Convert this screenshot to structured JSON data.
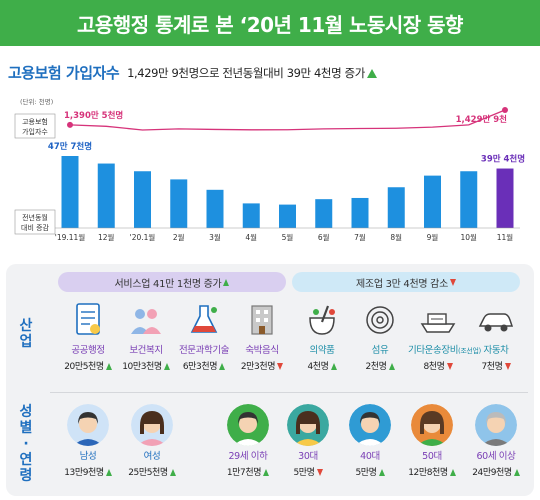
{
  "banner": {
    "title": "고용행정 통계로 본 ‘20년 11월 노동시장 동향"
  },
  "subhead": {
    "lead": "고용보험 가입자수",
    "desc": "1,429만 9천명으로 전년동월대비 39만 4천명 증가"
  },
  "chart_data": {
    "type": "bar",
    "unit_label": "(단위: 천명)",
    "categories": [
      "'19.11월",
      "12월",
      "'20.1월",
      "2월",
      "3월",
      "4월",
      "5월",
      "6월",
      "7월",
      "8월",
      "9월",
      "10월",
      "11월"
    ],
    "values": [
      477,
      427,
      376,
      322,
      253,
      163,
      155,
      191,
      199,
      270,
      347,
      376,
      394
    ],
    "bar_labels": {
      "first": "47만 7천명",
      "last": "39만 4천명"
    },
    "series_bar_name": "전년동월 대비 증감",
    "line": {
      "name": "고용보험 가입자수",
      "values": [
        13905,
        13868,
        13770,
        13800,
        13785,
        13775,
        13777,
        13800,
        13809,
        13817,
        13846,
        13906,
        14299
      ],
      "first_label": "1,390만 5천명",
      "last_label": "1,429만 9천",
      "color": "#d6337a"
    },
    "colors": {
      "bar": "#1e90df",
      "bar_last": "#6a2fb8"
    }
  },
  "pills": {
    "service": "서비스업 41만 1천명 증가",
    "mfg": "제조업 3만 4천명 감소"
  },
  "industry": {
    "label": "산업",
    "items": [
      {
        "name": "공공행정",
        "value": "20만5천명",
        "dir": "up",
        "icon": "document-icon"
      },
      {
        "name": "보건복지",
        "value": "10만3천명",
        "dir": "up",
        "icon": "people-icon"
      },
      {
        "name": "전문과학기술",
        "value": "6만3천명",
        "dir": "up",
        "icon": "science-icon"
      },
      {
        "name": "숙박음식",
        "value": "2만3천명",
        "dir": "down",
        "icon": "building-icon"
      },
      {
        "name": "의약품",
        "value": "4천명",
        "dir": "up",
        "icon": "pharmacy-icon"
      },
      {
        "name": "섬유",
        "value": "2천명",
        "dir": "up",
        "icon": "yarn-icon"
      },
      {
        "name": "기타운송장비",
        "name_sub": "(조선업)",
        "value": "8천명",
        "dir": "down",
        "icon": "ship-icon"
      },
      {
        "name": "자동차",
        "value": "7천명",
        "dir": "down",
        "icon": "car-icon"
      }
    ]
  },
  "demographic": {
    "label_top": "성별",
    "label_dot": "·",
    "label_bottom": "연령",
    "items": [
      {
        "name": "남성",
        "value": "13만9천명",
        "dir": "up",
        "icon": "man-icon"
      },
      {
        "name": "여성",
        "value": "25만5천명",
        "dir": "up",
        "icon": "woman-icon"
      },
      {
        "name": "29세 이하",
        "value": "1만7천명",
        "dir": "up",
        "icon": "young-man-icon"
      },
      {
        "name": "30대",
        "value": "5만명",
        "dir": "down",
        "icon": "thirties-woman-icon"
      },
      {
        "name": "40대",
        "value": "5만명",
        "dir": "up",
        "icon": "forties-man-icon"
      },
      {
        "name": "50대",
        "value": "12만8천명",
        "dir": "up",
        "icon": "fifties-woman-icon"
      },
      {
        "name": "60세 이상",
        "value": "24만9천명",
        "dir": "up",
        "icon": "senior-man-icon"
      }
    ]
  }
}
